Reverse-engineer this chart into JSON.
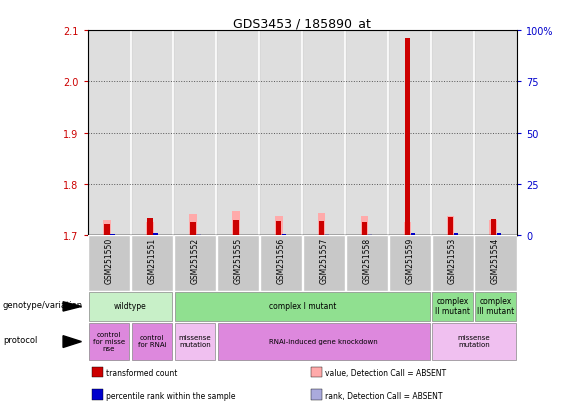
{
  "title": "GDS3453 / 185890_at",
  "samples": [
    "GSM251550",
    "GSM251551",
    "GSM251552",
    "GSM251555",
    "GSM251556",
    "GSM251557",
    "GSM251558",
    "GSM251559",
    "GSM251553",
    "GSM251554"
  ],
  "red_bars": [
    1.722,
    1.734,
    1.725,
    1.73,
    1.727,
    1.728,
    1.726,
    2.085,
    1.735,
    1.732
  ],
  "pink_bars": [
    1.73,
    1.726,
    1.74,
    1.746,
    1.738,
    1.742,
    1.737,
    1.726,
    1.737,
    1.729
  ],
  "blue_bars": [
    1.7015,
    1.703,
    1.7005,
    1.7005,
    1.701,
    1.7005,
    1.7005,
    1.703,
    1.703,
    1.703
  ],
  "lightblue_bars": [
    1.701,
    1.7005,
    1.701,
    1.7005,
    1.701,
    1.701,
    1.701,
    1.7005,
    1.7005,
    1.7005
  ],
  "ylim_left": [
    1.7,
    2.1
  ],
  "ylim_right": [
    0,
    100
  ],
  "yticks_left": [
    1.7,
    1.8,
    1.9,
    2.0,
    2.1
  ],
  "yticks_right": [
    0,
    25,
    50,
    75,
    100
  ],
  "ybaseline": 1.7,
  "genotype_groups": [
    {
      "label": "wildtype",
      "start": 0,
      "end": 2,
      "color": "#c8f0c8"
    },
    {
      "label": "complex I mutant",
      "start": 2,
      "end": 8,
      "color": "#90e090"
    },
    {
      "label": "complex\nII mutant",
      "start": 8,
      "end": 9,
      "color": "#90e090"
    },
    {
      "label": "complex\nIII mutant",
      "start": 9,
      "end": 10,
      "color": "#90e090"
    }
  ],
  "protocol_groups": [
    {
      "label": "control\nfor misse\nnse",
      "start": 0,
      "end": 1,
      "color": "#dd88dd"
    },
    {
      "label": "control\nfor RNAi",
      "start": 1,
      "end": 2,
      "color": "#dd88dd"
    },
    {
      "label": "missense\nmutation",
      "start": 2,
      "end": 3,
      "color": "#f0c0f0"
    },
    {
      "label": "RNAi-induced gene knockdown",
      "start": 3,
      "end": 8,
      "color": "#dd88dd"
    },
    {
      "label": "missense\nmutation",
      "start": 8,
      "end": 10,
      "color": "#f0c0f0"
    }
  ],
  "legend_items": [
    {
      "color": "#cc0000",
      "label": "transformed count"
    },
    {
      "color": "#0000cc",
      "label": "percentile rank within the sample"
    },
    {
      "color": "#ffaaaa",
      "label": "value, Detection Call = ABSENT"
    },
    {
      "color": "#aaaadd",
      "label": "rank, Detection Call = ABSENT"
    }
  ],
  "left_axis_color": "#cc0000",
  "right_axis_color": "#0000cc",
  "sample_bg_color": "#c8c8c8",
  "bg_color": "#ffffff"
}
